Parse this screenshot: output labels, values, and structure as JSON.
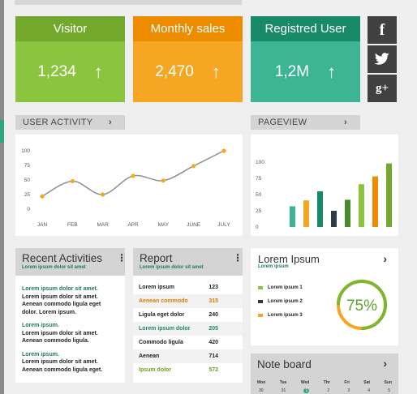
{
  "kpis": [
    {
      "title": "Visitor",
      "value": "1,234",
      "head_color": "#72a82c",
      "body_color": "#8bc53f"
    },
    {
      "title": "Monthly sales",
      "value": "2,470",
      "head_color": "#ee8c00",
      "body_color": "#f5a623"
    },
    {
      "title": "Registred User",
      "value": "1,2M",
      "head_color": "#198a68",
      "body_color": "#3db595"
    }
  ],
  "social": {
    "facebook": "f",
    "twitter": "t",
    "googleplus": "g+"
  },
  "user_activity": {
    "title": "USER ACTIVITY",
    "chart_data": {
      "type": "line",
      "categories": [
        "JAN",
        "FEB",
        "MAR",
        "APR",
        "MAY",
        "JUNE",
        "JULY"
      ],
      "y_ticks": [
        "100",
        "75",
        "50",
        "25",
        "0"
      ],
      "ylim": [
        0,
        100
      ],
      "x_points": [
        0,
        1,
        2,
        3,
        4,
        5,
        6
      ],
      "values": [
        22,
        48,
        25,
        57,
        49,
        74,
        100
      ],
      "line_color": "#8f8f8f",
      "marker_color": "#f5a623"
    }
  },
  "pageview": {
    "title": "PAGEVIEW",
    "chart_data": {
      "type": "bar",
      "y_ticks": [
        "100",
        "75",
        "50",
        "25",
        "0"
      ],
      "ylim": [
        0,
        100
      ],
      "values": [
        32,
        41,
        55,
        25,
        42,
        66,
        78,
        98
      ],
      "colors": [
        "#3db595",
        "#f5a623",
        "#198a68",
        "#2d3a4a",
        "#4a8c2a",
        "#8bc53f",
        "#ee8c00",
        "#72a82c"
      ]
    }
  },
  "recent": {
    "title": "Recent Activities",
    "subtitle": "Lorem ipsum dolor sit amet",
    "groups": [
      {
        "head": "Lorem ipsum dolor sit amet.",
        "lines": [
          "Lorem ipsum dolor sit amet.",
          "Aenean commodo ligula eget",
          "dolor. Lorem ipsum."
        ]
      },
      {
        "head": "Lorem ipsum.",
        "lines": [
          "Lorem ipsum dolor sit amet.",
          "Aenean commodo ligula."
        ]
      },
      {
        "head": "Lorem ipsum.",
        "lines": [
          "Lorem ipsum dolor sit amet.",
          "Aenean commodo ligula eget."
        ]
      }
    ]
  },
  "report": {
    "title": "Report",
    "subtitle": "Lorem ipsum dolor sit amet",
    "rows": [
      {
        "label": "Lorem ipsum",
        "value": "123",
        "color": "#222"
      },
      {
        "label": "Aenean commodo",
        "value": "315",
        "color": "#e07b00"
      },
      {
        "label": "Ligula eget dolor",
        "value": "240",
        "color": "#222"
      },
      {
        "label": "Lorem ipsum dolor",
        "value": "205",
        "color": "#198a68"
      },
      {
        "label": "Commodo ligula",
        "value": "420",
        "color": "#222"
      },
      {
        "label": "Aenean",
        "value": "714",
        "color": "#222"
      },
      {
        "label": "Ipsum dolor",
        "value": "572",
        "color": "#6a9f1f"
      }
    ]
  },
  "lorem_card": {
    "title": "Lorem Ipsum",
    "subtitle": "Lorem ipsum",
    "legend": [
      {
        "label": "Lorem ipsum 1",
        "color": "#8bc53f"
      },
      {
        "label": "Lorem ipsum 2",
        "color": "#2d3a4a"
      },
      {
        "label": "Lorem ipsum 3",
        "color": "#f5a623"
      }
    ],
    "percent_label": "75%",
    "percent": 75
  },
  "note_board": {
    "title": "Note board",
    "days": [
      "Mon",
      "Tue",
      "Wed",
      "Thr",
      "Fri",
      "Sat",
      "Sun"
    ],
    "dates": [
      "30",
      "31",
      "1",
      "2",
      "3",
      "4",
      "5"
    ]
  }
}
